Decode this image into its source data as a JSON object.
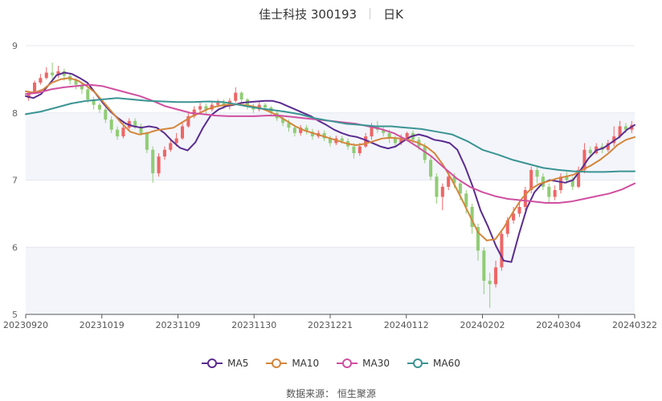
{
  "title": {
    "name": "佳士科技 300193",
    "period": "日K"
  },
  "source": {
    "label": "数据来源：",
    "value": "恒生聚源"
  },
  "chart_data": {
    "type": "candlestick",
    "ylim": [
      5,
      9
    ],
    "y_ticks": [
      "5",
      "6",
      "7",
      "8",
      "9"
    ],
    "x_ticks": [
      "20230920",
      "20231019",
      "20231109",
      "20231130",
      "20231221",
      "20240112",
      "20240202",
      "20240304",
      "20240322"
    ],
    "up_color": "#ee6666",
    "down_color": "#91cc75",
    "candles": [
      [
        8.22,
        8.3,
        8.32,
        8.18
      ],
      [
        8.3,
        8.45,
        8.48,
        8.28
      ],
      [
        8.45,
        8.52,
        8.58,
        8.42
      ],
      [
        8.52,
        8.6,
        8.68,
        8.5
      ],
      [
        8.6,
        8.56,
        8.75,
        8.5
      ],
      [
        8.56,
        8.62,
        8.7,
        8.52
      ],
      [
        8.62,
        8.55,
        8.66,
        8.48
      ],
      [
        8.55,
        8.48,
        8.6,
        8.42
      ],
      [
        8.48,
        8.42,
        8.52,
        8.35
      ],
      [
        8.42,
        8.35,
        8.46,
        8.28
      ],
      [
        8.35,
        8.2,
        8.38,
        8.15
      ],
      [
        8.2,
        8.12,
        8.24,
        8.05
      ],
      [
        8.12,
        8.05,
        8.15,
        8.0
      ],
      [
        8.05,
        7.9,
        8.08,
        7.85
      ],
      [
        7.9,
        7.75,
        7.95,
        7.7
      ],
      [
        7.75,
        7.65,
        7.8,
        7.6
      ],
      [
        7.65,
        7.78,
        7.85,
        7.62
      ],
      [
        7.78,
        7.88,
        7.92,
        7.75
      ],
      [
        7.88,
        7.8,
        7.92,
        7.76
      ],
      [
        7.8,
        7.7,
        7.84,
        7.66
      ],
      [
        7.7,
        7.45,
        7.72,
        7.4
      ],
      [
        7.45,
        7.1,
        7.5,
        6.96
      ],
      [
        7.1,
        7.35,
        7.4,
        7.05
      ],
      [
        7.35,
        7.45,
        7.5,
        7.3
      ],
      [
        7.45,
        7.55,
        7.6,
        7.42
      ],
      [
        7.55,
        7.62,
        7.7,
        7.5
      ],
      [
        7.62,
        7.8,
        7.85,
        7.6
      ],
      [
        7.8,
        7.95,
        8.0,
        7.78
      ],
      [
        7.95,
        8.05,
        8.1,
        7.92
      ],
      [
        8.05,
        8.1,
        8.15,
        8.0
      ],
      [
        8.1,
        8.05,
        8.14,
        7.98
      ],
      [
        8.05,
        8.12,
        8.16,
        8.02
      ],
      [
        8.12,
        8.15,
        8.2,
        8.08
      ],
      [
        8.15,
        8.1,
        8.2,
        8.06
      ],
      [
        8.1,
        8.18,
        8.22,
        8.05
      ],
      [
        8.18,
        8.3,
        8.38,
        8.15
      ],
      [
        8.3,
        8.2,
        8.32,
        8.15
      ],
      [
        8.2,
        8.1,
        8.22,
        8.05
      ],
      [
        8.1,
        8.05,
        8.14,
        8.0
      ],
      [
        8.05,
        8.12,
        8.16,
        8.02
      ],
      [
        8.12,
        8.08,
        8.15,
        8.04
      ],
      [
        8.08,
        8.0,
        8.1,
        7.95
      ],
      [
        8.0,
        7.92,
        8.04,
        7.88
      ],
      [
        7.92,
        7.85,
        7.95,
        7.8
      ],
      [
        7.85,
        7.78,
        7.9,
        7.72
      ],
      [
        7.78,
        7.7,
        7.82,
        7.65
      ],
      [
        7.7,
        7.78,
        7.82,
        7.66
      ],
      [
        7.78,
        7.72,
        7.82,
        7.68
      ],
      [
        7.72,
        7.65,
        7.76,
        7.6
      ],
      [
        7.65,
        7.7,
        7.74,
        7.62
      ],
      [
        7.7,
        7.62,
        7.74,
        7.58
      ],
      [
        7.62,
        7.55,
        7.66,
        7.5
      ],
      [
        7.55,
        7.62,
        7.66,
        7.52
      ],
      [
        7.62,
        7.58,
        7.66,
        7.54
      ],
      [
        7.58,
        7.5,
        7.62,
        7.45
      ],
      [
        7.5,
        7.4,
        7.55,
        7.32
      ],
      [
        7.4,
        7.5,
        7.55,
        7.36
      ],
      [
        7.5,
        7.65,
        7.7,
        7.48
      ],
      [
        7.65,
        7.8,
        7.85,
        7.6
      ],
      [
        7.8,
        7.75,
        7.88,
        7.7
      ],
      [
        7.75,
        7.7,
        7.8,
        7.65
      ],
      [
        7.7,
        7.62,
        7.75,
        7.55
      ],
      [
        7.62,
        7.55,
        7.66,
        7.5
      ],
      [
        7.55,
        7.62,
        7.68,
        7.52
      ],
      [
        7.62,
        7.7,
        7.72,
        7.58
      ],
      [
        7.7,
        7.6,
        7.74,
        7.55
      ],
      [
        7.6,
        7.5,
        7.64,
        7.45
      ],
      [
        7.5,
        7.3,
        7.55,
        7.25
      ],
      [
        7.3,
        7.05,
        7.35,
        7.0
      ],
      [
        7.05,
        6.75,
        7.1,
        6.65
      ],
      [
        6.75,
        6.9,
        6.95,
        6.55
      ],
      [
        6.9,
        7.05,
        7.1,
        6.85
      ],
      [
        7.05,
        6.95,
        7.1,
        6.88
      ],
      [
        6.95,
        6.8,
        7.0,
        6.7
      ],
      [
        6.8,
        6.6,
        6.85,
        6.5
      ],
      [
        6.6,
        6.3,
        6.65,
        6.2
      ],
      [
        6.3,
        5.95,
        6.35,
        5.8
      ],
      [
        5.95,
        5.5,
        6.0,
        5.3
      ],
      [
        5.5,
        5.45,
        5.62,
        5.1
      ],
      [
        5.45,
        5.7,
        5.8,
        5.4
      ],
      [
        5.7,
        6.2,
        6.25,
        5.65
      ],
      [
        6.2,
        6.4,
        6.45,
        6.15
      ],
      [
        6.4,
        6.5,
        6.6,
        6.35
      ],
      [
        6.5,
        6.6,
        6.7,
        6.45
      ],
      [
        6.6,
        6.85,
        6.9,
        6.55
      ],
      [
        6.85,
        7.15,
        7.2,
        6.8
      ],
      [
        7.15,
        7.05,
        7.2,
        6.95
      ],
      [
        7.05,
        6.9,
        7.1,
        6.85
      ],
      [
        6.9,
        6.75,
        6.95,
        6.65
      ],
      [
        6.75,
        6.85,
        6.92,
        6.7
      ],
      [
        6.85,
        7.05,
        7.1,
        6.8
      ],
      [
        7.05,
        7.0,
        7.12,
        6.95
      ],
      [
        7.0,
        6.9,
        7.05,
        6.85
      ],
      [
        6.9,
        7.15,
        7.2,
        6.88
      ],
      [
        7.15,
        7.45,
        7.55,
        7.1
      ],
      [
        7.45,
        7.4,
        7.5,
        7.35
      ],
      [
        7.4,
        7.5,
        7.55,
        7.38
      ],
      [
        7.5,
        7.45,
        7.55,
        7.4
      ],
      [
        7.45,
        7.55,
        7.6,
        7.42
      ],
      [
        7.55,
        7.65,
        7.8,
        7.5
      ],
      [
        7.65,
        7.8,
        7.88,
        7.62
      ],
      [
        7.8,
        7.75,
        7.85,
        7.7
      ],
      [
        7.75,
        7.82,
        7.88,
        7.7
      ]
    ],
    "series": [
      {
        "name": "MA5",
        "color": "#5b2c8f",
        "values": [
          8.25,
          8.22,
          8.28,
          8.42,
          8.56,
          8.6,
          8.58,
          8.52,
          8.45,
          8.3,
          8.15,
          8.02,
          7.92,
          7.84,
          7.8,
          7.78,
          7.8,
          7.78,
          7.7,
          7.58,
          7.48,
          7.44,
          7.56,
          7.78,
          7.96,
          8.05,
          8.1,
          8.12,
          8.15,
          8.16,
          8.17,
          8.18,
          8.18,
          8.15,
          8.1,
          8.05,
          8.0,
          7.95,
          7.88,
          7.82,
          7.75,
          7.7,
          7.66,
          7.64,
          7.6,
          7.55,
          7.5,
          7.47,
          7.5,
          7.58,
          7.65,
          7.68,
          7.65,
          7.6,
          7.58,
          7.55,
          7.45,
          7.2,
          6.9,
          6.55,
          6.3,
          6.02,
          5.8,
          5.78,
          6.2,
          6.58,
          6.82,
          6.95,
          7.0,
          6.98,
          6.96,
          7.0,
          7.15,
          7.32,
          7.44,
          7.48,
          7.56,
          7.64,
          7.75,
          7.82
        ]
      },
      {
        "name": "MA10",
        "color": "#d4853b",
        "values": [
          8.32,
          8.3,
          8.35,
          8.45,
          8.5,
          8.52,
          8.48,
          8.4,
          8.3,
          8.15,
          8.0,
          7.85,
          7.72,
          7.68,
          7.7,
          7.74,
          7.76,
          7.78,
          7.86,
          7.94,
          8.0,
          8.06,
          8.1,
          8.12,
          8.13,
          8.12,
          8.1,
          8.07,
          8.02,
          7.96,
          7.88,
          7.8,
          7.74,
          7.7,
          7.66,
          7.62,
          7.58,
          7.54,
          7.52,
          7.54,
          7.58,
          7.62,
          7.63,
          7.62,
          7.6,
          7.56,
          7.5,
          7.4,
          7.22,
          7.0,
          6.75,
          6.48,
          6.22,
          6.1,
          6.12,
          6.3,
          6.52,
          6.72,
          6.86,
          6.94,
          6.98,
          7.02,
          7.05,
          7.08,
          7.15,
          7.22,
          7.3,
          7.4,
          7.52,
          7.6,
          7.64
        ]
      },
      {
        "name": "MA30",
        "color": "#d04fa0",
        "values": [
          8.28,
          8.3,
          8.35,
          8.38,
          8.4,
          8.42,
          8.4,
          8.35,
          8.3,
          8.25,
          8.18,
          8.1,
          8.05,
          8.0,
          7.98,
          7.96,
          7.95,
          7.95,
          7.95,
          7.96,
          7.96,
          7.94,
          7.92,
          7.9,
          7.88,
          7.86,
          7.84,
          7.8,
          7.76,
          7.7,
          7.6,
          7.48,
          7.35,
          7.18,
          7.02,
          6.9,
          6.82,
          6.76,
          6.72,
          6.7,
          6.68,
          6.66,
          6.66,
          6.68,
          6.72,
          6.76,
          6.8,
          6.86,
          6.95
        ]
      },
      {
        "name": "MA60",
        "color": "#3a9493",
        "values": [
          7.98,
          8.02,
          8.08,
          8.14,
          8.18,
          8.2,
          8.22,
          8.2,
          8.18,
          8.17,
          8.16,
          8.16,
          8.17,
          8.16,
          8.12,
          8.08,
          8.05,
          8.02,
          7.98,
          7.92,
          7.88,
          7.84,
          7.82,
          7.8,
          7.8,
          7.78,
          7.76,
          7.72,
          7.68,
          7.58,
          7.45,
          7.38,
          7.3,
          7.24,
          7.18,
          7.15,
          7.13,
          7.12,
          7.12,
          7.13,
          7.13
        ]
      }
    ]
  }
}
